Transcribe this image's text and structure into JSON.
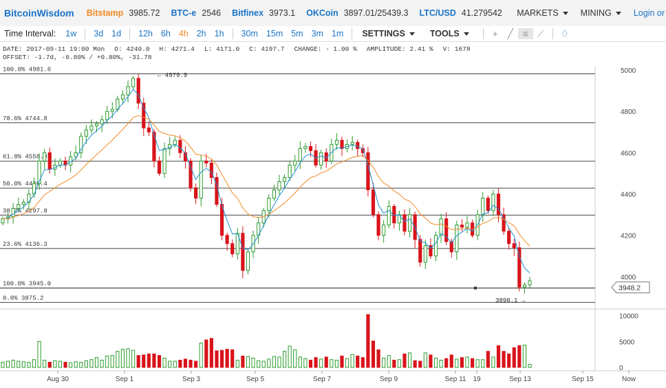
{
  "brand": "BitcoinWisdom",
  "tickers": [
    {
      "exchange": "Bitstamp",
      "value": "3985.72",
      "color": "#f08a24"
    },
    {
      "exchange": "BTC-e",
      "value": "2546",
      "color": "#1a73c7"
    },
    {
      "exchange": "Bitfinex",
      "value": "3973.1",
      "color": "#1a73c7"
    },
    {
      "exchange": "OKCoin",
      "value": "3897.01/25439.3",
      "color": "#1a73c7"
    },
    {
      "exchange": "LTC/USD",
      "value": "41.279542",
      "color": "#1a73c7"
    }
  ],
  "menus": {
    "markets": "MARKETS",
    "mining": "MINING",
    "login": "Login or"
  },
  "toolbar": {
    "time_interval_label": "Time Interval:",
    "intervals_a": [
      "1w",
      "3d",
      "1d"
    ],
    "intervals_b": [
      "12h",
      "6h",
      "4h",
      "2h",
      "1h"
    ],
    "intervals_c": [
      "30m",
      "15m",
      "5m",
      "3m",
      "1m"
    ],
    "active_interval": "4h",
    "settings": "SETTINGS",
    "tools": "TOOLS",
    "icons": [
      "crosshair-icon",
      "draw-line-icon",
      "horizontal-lines-icon",
      "fan-icon",
      "alert-bell-icon"
    ]
  },
  "info": {
    "date": "DATE: 2017-09-11 19:00 Mon",
    "open": "O: 4240.0",
    "high": "H: 4271.4",
    "low": "L: 4171.0",
    "close": "C: 4197.7",
    "change": "CHANGE: - 1.00 %",
    "amplitude": "AMPLITUDE: 2.41 %",
    "volume": "V: 1678",
    "offset": "OFFSET: -1.7d, -0.80% / +0.80%, -31.78"
  },
  "chart_data": {
    "type": "candlestick",
    "ylim": [
      3850,
      5020
    ],
    "yticks": [
      "5000",
      "4800",
      "4600",
      "4400",
      "4200",
      "4000"
    ],
    "xticks": [
      "Aug 30",
      "Sep 1",
      "Sep 3",
      "Sep 5",
      "Sep 7",
      "Sep 9",
      "Sep 11",
      "19",
      "Sep 13",
      "Sep 15",
      "Now"
    ],
    "fib_levels": [
      {
        "label": "100.0% 4981.6",
        "price": 4981.6
      },
      {
        "label": "78.6% 4744.8",
        "price": 4744.8
      },
      {
        "label": "61.8% 4558.9",
        "price": 4558.9
      },
      {
        "label": "50.0% 4428.4",
        "price": 4428.4
      },
      {
        "label": "38.2% 4297.8",
        "price": 4297.8
      },
      {
        "label": "23.6% 4136.3",
        "price": 4136.3
      },
      {
        "label": "100.0% 3945.0",
        "price": 3945.0
      },
      {
        "label": "0.0% 3875.2",
        "price": 3875.2
      }
    ],
    "annotations": {
      "high": "← 4979.9",
      "low": "3890.1 →",
      "current_price": "3948.2"
    },
    "volume_yticks": [
      "10000",
      "5000",
      "0"
    ],
    "colors": {
      "up": "#2a9a2a",
      "down": "#d9141b",
      "ema_fast": "#1f8fd6",
      "ema_slow": "#f08a24",
      "grid": "#888"
    },
    "close_path": [
      4280,
      4290,
      4330,
      4350,
      4360,
      4400,
      4450,
      4560,
      4600,
      4520,
      4540,
      4560,
      4540,
      4580,
      4600,
      4680,
      4710,
      4730,
      4740,
      4760,
      4800,
      4810,
      4860,
      4880,
      4920,
      4960,
      4840,
      4720,
      4700,
      4560,
      4500,
      4620,
      4640,
      4660,
      4600,
      4560,
      4430,
      4380,
      4560,
      4550,
      4480,
      4350,
      4200,
      4160,
      4110,
      4210,
      4030,
      4120,
      4200,
      4260,
      4320,
      4380,
      4420,
      4460,
      4480,
      4540,
      4560,
      4620,
      4630,
      4610,
      4540,
      4600,
      4560,
      4640,
      4660,
      4620,
      4640,
      4650,
      4620,
      4600,
      4420,
      4300,
      4200,
      4250,
      4340,
      4260,
      4300,
      4220,
      4300,
      4180,
      4070,
      4150,
      4100,
      4200,
      4280,
      4170,
      4120,
      4250,
      4240,
      4260,
      4200,
      4300,
      4380,
      4320,
      4400,
      4300,
      4220,
      4160,
      4140,
      3950,
      3960,
      3980
    ],
    "volume_values": [
      1,
      1.2,
      1.4,
      1.2,
      1.1,
      1.0,
      1.5,
      5.0,
      1.4,
      1.0,
      1.3,
      1.2,
      1.0,
      0.9,
      1.1,
      1.0,
      1.3,
      1.5,
      1.9,
      1.4,
      2.2,
      2.3,
      3.1,
      3.5,
      3.6,
      3.3,
      2.3,
      2.4,
      2.6,
      2.6,
      2.3,
      1.8,
      1.2,
      1.2,
      1.4,
      1.6,
      1.4,
      1.2,
      4.7,
      5.3,
      5.6,
      3.2,
      3.3,
      3.5,
      3.4,
      1.4,
      2.2,
      2.1,
      1.8,
      1.3,
      1.2,
      1.6,
      2.1,
      2.0,
      3.1,
      4.1,
      3.4,
      2.0,
      1.7,
      1.4,
      1.9,
      1.6,
      2.0,
      1.5,
      1.4,
      2.2,
      1.7,
      2.5,
      2.2,
      1.9,
      10.2,
      5.1,
      3.4,
      1.8,
      2.3,
      1.4,
      1.5,
      2.6,
      2.8,
      1.3,
      1.2,
      2.8,
      2.4,
      1.8,
      1.4,
      1.7,
      2.4,
      1.6,
      1.9,
      2.0,
      1.7,
      1.5,
      1.5,
      3.1,
      2.0,
      4.2,
      3.1,
      2.6,
      3.8,
      4.2,
      4.3,
      0.6
    ]
  }
}
